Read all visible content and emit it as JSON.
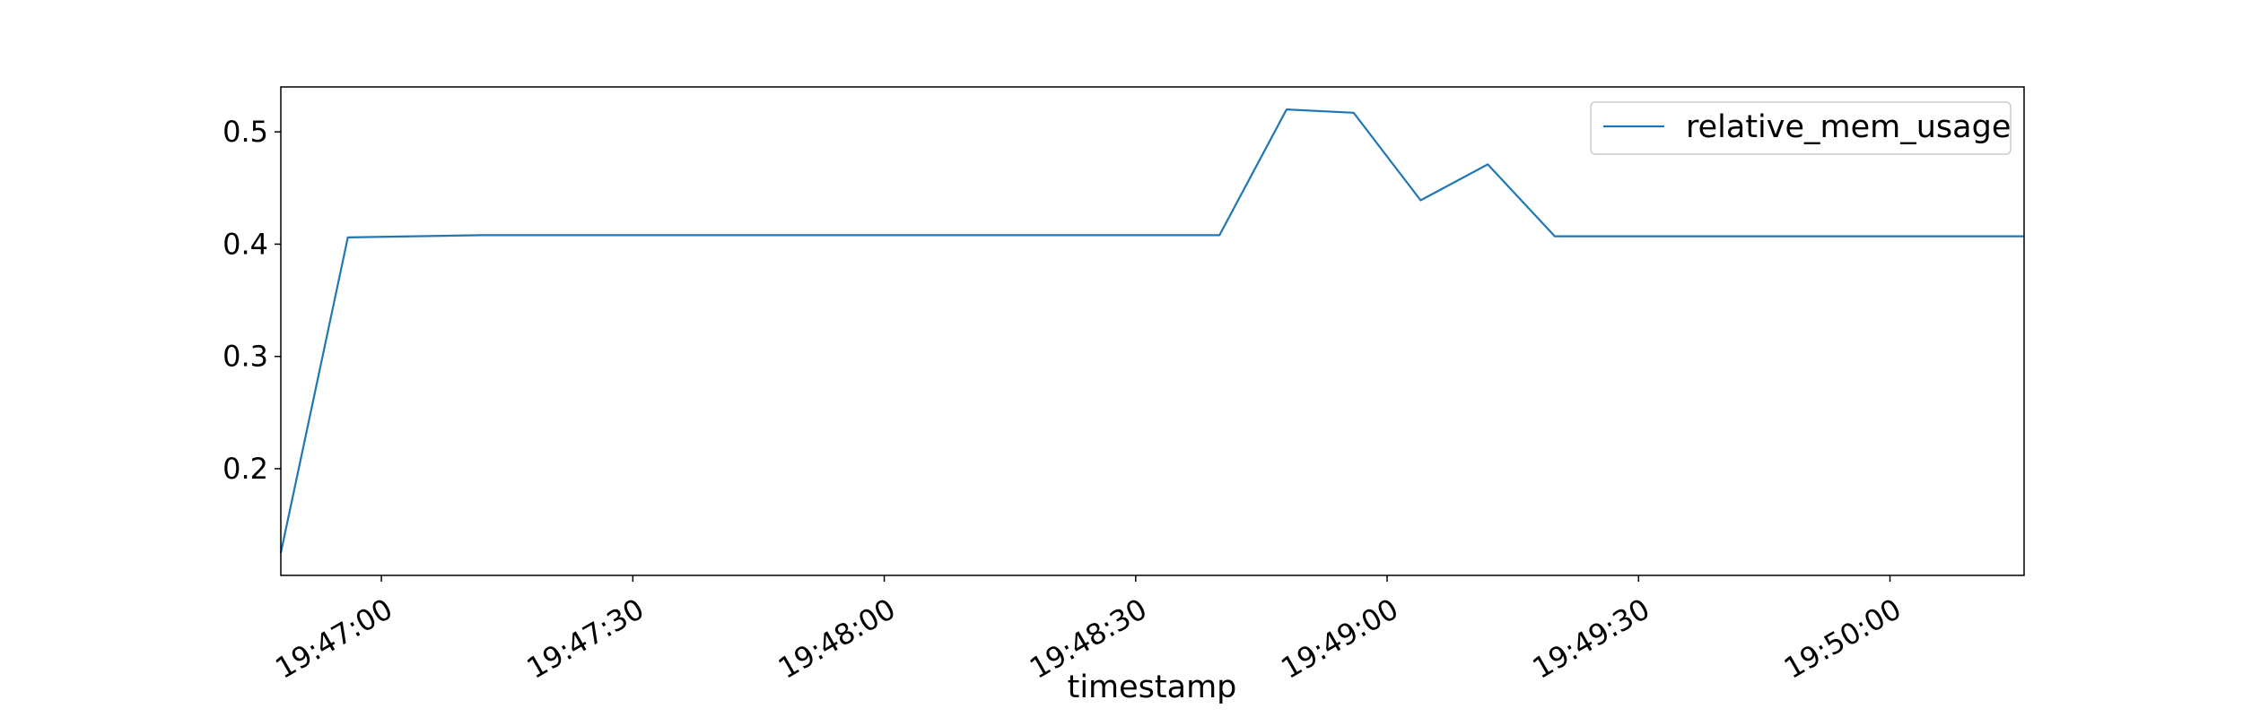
{
  "chart_data": {
    "type": "line",
    "title": "",
    "xlabel": "timestamp",
    "ylabel": "",
    "xlim": [
      "19:46:48",
      "19:50:16"
    ],
    "ylim": [
      0.105,
      0.54
    ],
    "x_ticks": [
      "19:47:00",
      "19:47:30",
      "19:48:00",
      "19:48:30",
      "19:49:00",
      "19:49:30",
      "19:50:00"
    ],
    "y_ticks": [
      0.2,
      0.3,
      0.4,
      0.5
    ],
    "y_tick_labels": [
      "0.2",
      "0.3",
      "0.4",
      "0.5"
    ],
    "grid": false,
    "legend": {
      "position": "top-right",
      "entries": [
        "relative_mem_usage"
      ]
    },
    "series": [
      {
        "name": "relative_mem_usage",
        "color": "#1f77b4",
        "points": [
          {
            "x": "19:46:48",
            "y": 0.125
          },
          {
            "x": "19:46:56",
            "y": 0.406
          },
          {
            "x": "19:47:04",
            "y": 0.407
          },
          {
            "x": "19:47:12",
            "y": 0.408
          },
          {
            "x": "19:47:20",
            "y": 0.408
          },
          {
            "x": "19:47:28",
            "y": 0.408
          },
          {
            "x": "19:47:36",
            "y": 0.408
          },
          {
            "x": "19:47:44",
            "y": 0.408
          },
          {
            "x": "19:47:52",
            "y": 0.408
          },
          {
            "x": "19:48:00",
            "y": 0.408
          },
          {
            "x": "19:48:08",
            "y": 0.408
          },
          {
            "x": "19:48:16",
            "y": 0.408
          },
          {
            "x": "19:48:24",
            "y": 0.408
          },
          {
            "x": "19:48:32",
            "y": 0.408
          },
          {
            "x": "19:48:40",
            "y": 0.408
          },
          {
            "x": "19:48:48",
            "y": 0.52
          },
          {
            "x": "19:48:56",
            "y": 0.517
          },
          {
            "x": "19:49:04",
            "y": 0.439
          },
          {
            "x": "19:49:12",
            "y": 0.471
          },
          {
            "x": "19:49:20",
            "y": 0.407
          },
          {
            "x": "19:49:28",
            "y": 0.407
          },
          {
            "x": "19:49:36",
            "y": 0.407
          },
          {
            "x": "19:49:44",
            "y": 0.407
          },
          {
            "x": "19:49:52",
            "y": 0.407
          },
          {
            "x": "19:50:00",
            "y": 0.407
          },
          {
            "x": "19:50:08",
            "y": 0.407
          },
          {
            "x": "19:50:16",
            "y": 0.407
          }
        ]
      }
    ]
  }
}
